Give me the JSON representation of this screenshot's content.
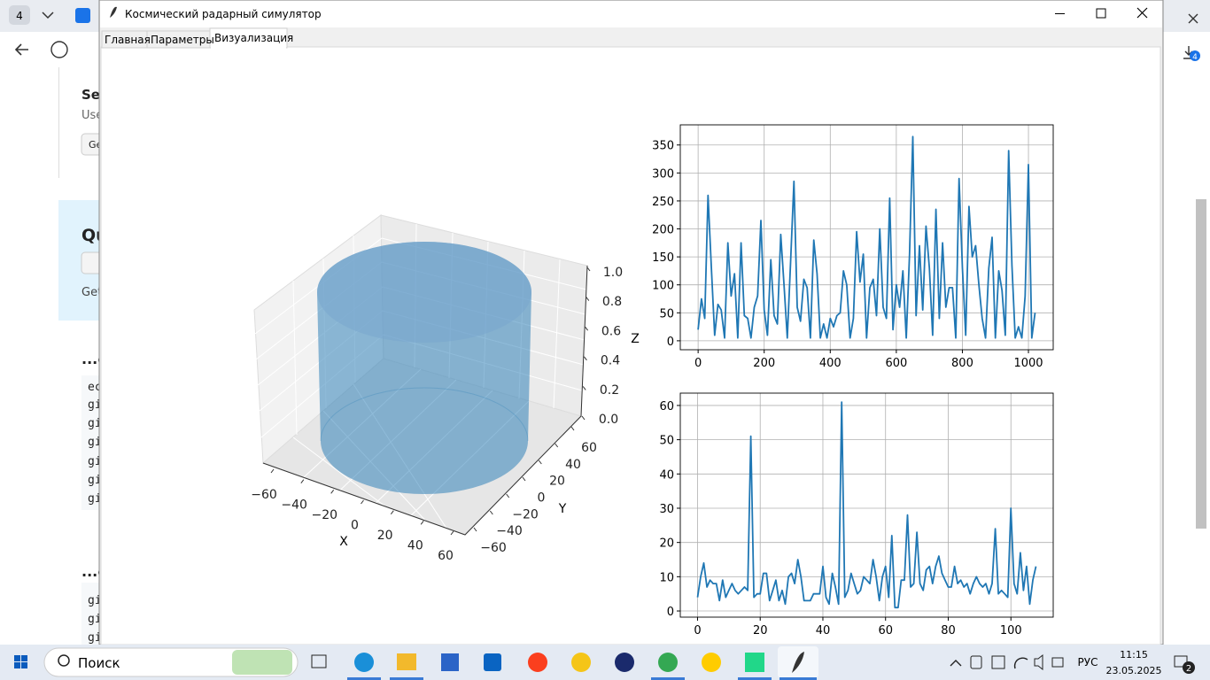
{
  "window": {
    "title": "Космический радарный симулятор",
    "tabs": [
      "Главная",
      "Параметры",
      "Визуализация"
    ]
  },
  "browser": {
    "tab_count": "4",
    "download_badge": "4",
    "texts": [
      "Set",
      "Use",
      "Ge",
      "Qu",
      "Get",
      "...c",
      "ec",
      "gi",
      "gi",
      "gi",
      "gi",
      "gi",
      "gi",
      "...c",
      "gi",
      "gi",
      "gi"
    ]
  },
  "plot3d": {
    "xlabel": "X",
    "ylabel": "Y",
    "zlabel": "Z",
    "xticks": [
      {
        "value": -60,
        "label": "−60"
      },
      {
        "value": -40,
        "label": "−40"
      },
      {
        "value": -20,
        "label": "−20"
      },
      0,
      20,
      40,
      60
    ],
    "yticks": [
      {
        "value": -60,
        "label": "−60"
      },
      {
        "value": -40,
        "label": "−40"
      },
      {
        "value": -20,
        "label": "−20"
      },
      0,
      20,
      40,
      60
    ],
    "zticks": [
      {
        "value": 0,
        "label": "0.0"
      },
      {
        "value": 0.2,
        "label": "0.2"
      },
      {
        "value": 0.4,
        "label": "0.4"
      },
      {
        "value": 0.6,
        "label": "0.6"
      },
      {
        "value": 0.8,
        "label": "0.8"
      },
      {
        "value": 1,
        "label": "1.0"
      }
    ]
  },
  "chart_data": [
    {
      "type": "line",
      "grid": true,
      "xlim": [
        -54,
        1075
      ],
      "ylim": [
        -16,
        386
      ],
      "xticks": [
        0,
        200,
        400,
        600,
        800,
        1000
      ],
      "yticks": [
        0,
        50,
        100,
        150,
        200,
        250,
        300,
        350
      ],
      "x": [
        0,
        10,
        20,
        30,
        40,
        50,
        60,
        70,
        80,
        90,
        100,
        110,
        120,
        130,
        140,
        150,
        160,
        170,
        180,
        190,
        200,
        210,
        220,
        230,
        240,
        250,
        260,
        270,
        280,
        290,
        300,
        310,
        320,
        330,
        340,
        350,
        360,
        370,
        380,
        390,
        400,
        410,
        420,
        430,
        440,
        450,
        460,
        470,
        480,
        490,
        500,
        510,
        520,
        530,
        540,
        550,
        560,
        570,
        580,
        590,
        600,
        610,
        620,
        630,
        640,
        650,
        660,
        670,
        680,
        690,
        700,
        710,
        720,
        730,
        740,
        750,
        760,
        770,
        780,
        790,
        800,
        810,
        820,
        830,
        840,
        850,
        860,
        870,
        880,
        890,
        900,
        910,
        920,
        930,
        940,
        950,
        960,
        970,
        980,
        990,
        1000,
        1010,
        1020
      ],
      "series": [
        {
          "color": "#1f77b4",
          "values": [
            20,
            75,
            40,
            260,
            130,
            10,
            65,
            55,
            5,
            175,
            80,
            120,
            5,
            175,
            45,
            40,
            5,
            60,
            80,
            215,
            55,
            10,
            145,
            45,
            30,
            190,
            100,
            5,
            140,
            285,
            60,
            35,
            110,
            95,
            5,
            180,
            120,
            5,
            30,
            5,
            40,
            25,
            45,
            50,
            125,
            100,
            5,
            40,
            195,
            105,
            155,
            5,
            95,
            110,
            45,
            200,
            60,
            40,
            255,
            20,
            100,
            60,
            125,
            5,
            155,
            365,
            45,
            170,
            55,
            205,
            130,
            10,
            235,
            40,
            175,
            60,
            95,
            95,
            5,
            290,
            130,
            10,
            240,
            150,
            170,
            100,
            40,
            5,
            130,
            185,
            5,
            125,
            90,
            10,
            340,
            135,
            5,
            25,
            5,
            80,
            315,
            5,
            50
          ]
        }
      ]
    },
    {
      "type": "line",
      "grid": true,
      "xlim": [
        -5.5,
        113.5
      ],
      "ylim": [
        -1.8,
        63.6
      ],
      "xticks": [
        0,
        20,
        40,
        60,
        80,
        100
      ],
      "yticks": [
        0,
        10,
        20,
        30,
        40,
        50,
        60
      ],
      "x": [
        0,
        1,
        2,
        3,
        4,
        5,
        6,
        7,
        8,
        9,
        10,
        11,
        12,
        13,
        14,
        15,
        16,
        17,
        18,
        19,
        20,
        21,
        22,
        23,
        24,
        25,
        26,
        27,
        28,
        29,
        30,
        31,
        32,
        33,
        34,
        35,
        36,
        37,
        38,
        39,
        40,
        41,
        42,
        43,
        44,
        45,
        46,
        47,
        48,
        49,
        50,
        51,
        52,
        53,
        54,
        55,
        56,
        57,
        58,
        59,
        60,
        61,
        62,
        63,
        64,
        65,
        66,
        67,
        68,
        69,
        70,
        71,
        72,
        73,
        74,
        75,
        76,
        77,
        78,
        79,
        80,
        81,
        82,
        83,
        84,
        85,
        86,
        87,
        88,
        89,
        90,
        91,
        92,
        93,
        94,
        95,
        96,
        97,
        98,
        99,
        100,
        101,
        102,
        103,
        104,
        105,
        106,
        107,
        108
      ],
      "series": [
        {
          "color": "#1f77b4",
          "values": [
            4,
            10,
            14,
            7,
            9,
            8,
            8,
            3,
            9,
            4,
            6,
            8,
            6,
            5,
            6,
            7,
            6,
            51,
            4,
            5,
            5,
            11,
            11,
            3,
            6,
            9,
            3,
            6,
            2,
            10,
            11,
            8,
            15,
            10,
            3,
            3,
            3,
            5,
            5,
            5,
            13,
            4,
            2,
            11,
            7,
            2,
            61,
            4,
            6,
            11,
            8,
            5,
            6,
            10,
            9,
            8,
            15,
            10,
            3,
            10,
            13,
            4,
            22,
            1,
            1,
            9,
            9,
            28,
            7,
            8,
            23,
            8,
            6,
            12,
            13,
            8,
            13,
            16,
            11,
            9,
            7,
            7,
            13,
            8,
            9,
            7,
            8,
            5,
            8,
            10,
            8,
            7,
            8,
            5,
            8,
            24,
            5,
            6,
            5,
            4,
            30,
            8,
            5,
            17,
            6,
            13,
            2,
            9,
            13
          ]
        }
      ]
    }
  ],
  "taskbar": {
    "search": "Поиск",
    "language": "РУС",
    "time": "11:15",
    "date": "23.05.2025",
    "notifications": "2"
  }
}
